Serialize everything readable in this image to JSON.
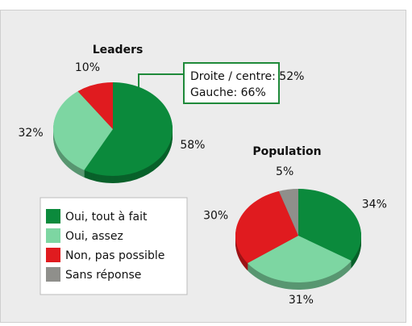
{
  "chart_data": [
    {
      "type": "pie",
      "title": "Leaders",
      "categories": [
        "Oui, tout à fait",
        "Oui, assez",
        "Non, pas possible"
      ],
      "values": [
        58,
        32,
        10
      ],
      "value_labels": [
        "58%",
        "32%",
        "10%"
      ],
      "colors": [
        "#0b8a3c",
        "#7dd6a2",
        "#e01b1f"
      ],
      "annotation": [
        "Droite / centre: 52%",
        "Gauche: 66%"
      ]
    },
    {
      "type": "pie",
      "title": "Population",
      "categories": [
        "Oui, tout à fait",
        "Oui, assez",
        "Non, pas possible",
        "Sans réponse"
      ],
      "values": [
        34,
        31,
        30,
        5
      ],
      "value_labels": [
        "34%",
        "31%",
        "30%",
        "5%"
      ],
      "colors": [
        "#0b8a3c",
        "#7dd6a2",
        "#e01b1f",
        "#8f8f8b"
      ]
    }
  ]
}
